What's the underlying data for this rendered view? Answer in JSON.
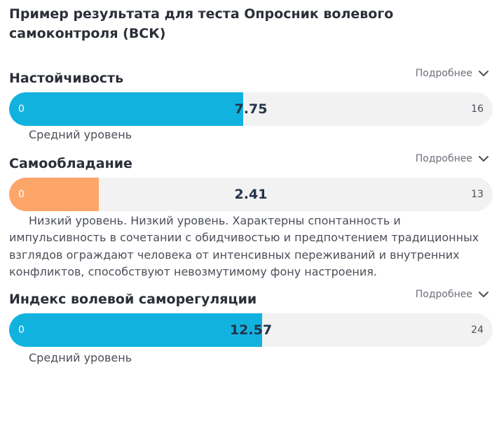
{
  "page": {
    "title": "Пример результата для теста Опросник волевого самоконтроля (ВСК)"
  },
  "colors": {
    "average": "#12b2df",
    "low": "#fca66a",
    "track": "#f2f2f2",
    "text_dark": "#2b2f38",
    "text_muted": "#6b6f78"
  },
  "sections": [
    {
      "title": "Настойчивость",
      "details_label": "Подробнее",
      "toggle_icon": "chevron-down-icon",
      "min": "0",
      "max": "16",
      "value": "7.75",
      "value_num": 7.75,
      "max_num": 16,
      "level_color": "#12b2df",
      "level_text": "Средний уровень"
    },
    {
      "title": "Самообладание",
      "details_label": "Подробнее",
      "toggle_icon": "chevron-down-icon",
      "min": "0",
      "max": "13",
      "value": "2.41",
      "value_num": 2.41,
      "max_num": 13,
      "level_color": "#fca66a",
      "level_text": "Низкий уровень. Низкий уровень. Характерны спонтанность и импульсивность в сочетании с обидчивостью и предпочтением традиционных взглядов ограждают человека от интенсивных переживаний и внутренних конфликтов, способствуют невозмутимому фону настроения."
    },
    {
      "title": "Индекс волевой саморегуляции",
      "details_label": "Подробнее",
      "toggle_icon": "chevron-down-icon",
      "min": "0",
      "max": "24",
      "value": "12.57",
      "value_num": 12.57,
      "max_num": 24,
      "level_color": "#12b2df",
      "level_text": "Средний уровень"
    }
  ]
}
